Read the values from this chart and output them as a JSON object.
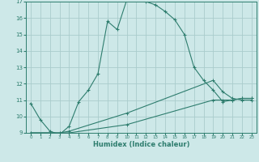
{
  "xlabel": "Humidex (Indice chaleur)",
  "ylabel": "",
  "xlim": [
    -0.5,
    23.5
  ],
  "ylim": [
    9,
    17
  ],
  "yticks": [
    9,
    10,
    11,
    12,
    13,
    14,
    15,
    16,
    17
  ],
  "xticks": [
    0,
    1,
    2,
    3,
    4,
    5,
    6,
    7,
    8,
    9,
    10,
    11,
    12,
    13,
    14,
    15,
    16,
    17,
    18,
    19,
    20,
    21,
    22,
    23
  ],
  "bg_color": "#cde8e8",
  "grid_color": "#aacccc",
  "line_color": "#2e7d6e",
  "line1_x": [
    0,
    1,
    2,
    3,
    4,
    5,
    6,
    7,
    8,
    9,
    10,
    11,
    12,
    13,
    14,
    15,
    16,
    17,
    18,
    19,
    20,
    21,
    22,
    23
  ],
  "line1_y": [
    10.8,
    9.8,
    9.1,
    8.9,
    9.4,
    10.9,
    11.6,
    12.6,
    15.8,
    15.3,
    17.1,
    17.1,
    17.0,
    16.8,
    16.4,
    15.9,
    15.0,
    13.0,
    12.2,
    11.6,
    10.9,
    11.0,
    11.1,
    11.1
  ],
  "line2_x": [
    0,
    3,
    4,
    10,
    19,
    20,
    21,
    22,
    23
  ],
  "line2_y": [
    9.0,
    9.0,
    9.1,
    10.2,
    12.2,
    11.5,
    11.1,
    11.0,
    11.0
  ],
  "line3_x": [
    0,
    3,
    4,
    10,
    19,
    20,
    21,
    22,
    23
  ],
  "line3_y": [
    9.0,
    9.0,
    9.0,
    9.5,
    11.0,
    11.0,
    11.0,
    11.1,
    11.1
  ]
}
